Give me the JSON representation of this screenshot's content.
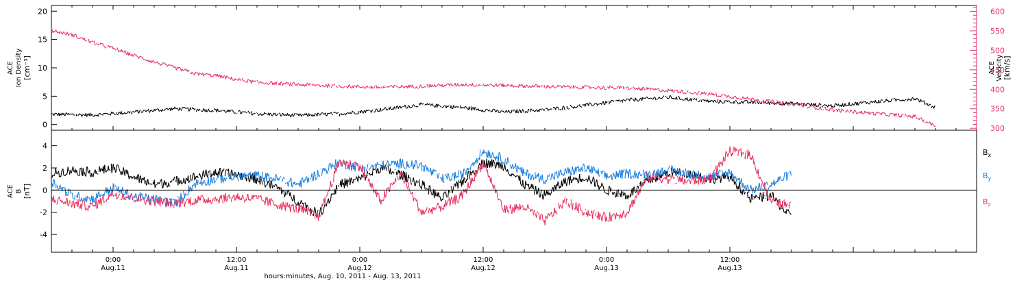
{
  "colors": {
    "black": "#000000",
    "blue": "#1a7fe0",
    "red": "#e8305f",
    "axis": "#000000",
    "background": "#ffffff"
  },
  "chart_data": [
    {
      "type": "scatter",
      "panel": "plasma",
      "ylabel_lines": [
        "ACE",
        "Ion Density",
        "[cm⁻³]"
      ],
      "ylim": [
        -1,
        21
      ],
      "yticks": [
        0,
        5,
        10,
        15,
        20
      ],
      "y2label_lines": [
        "ACE",
        "Velocity",
        "[km/s]"
      ],
      "y2lim": [
        295,
        615
      ],
      "y2ticks": [
        300,
        350,
        400,
        450,
        500,
        550,
        600
      ],
      "xlim": [
        -6,
        84
      ],
      "series": [
        {
          "key": "density",
          "axis": "left",
          "color": "#000000",
          "x": [
            -6,
            -2,
            2,
            6,
            10,
            14,
            18,
            22,
            26,
            30,
            34,
            38,
            42,
            46,
            50,
            54,
            58,
            62,
            66,
            70,
            74,
            78,
            80
          ],
          "y": [
            1.8,
            1.7,
            2.2,
            2.8,
            2.5,
            1.9,
            1.6,
            1.9,
            2.6,
            3.5,
            3.0,
            2.2,
            2.6,
            3.4,
            4.3,
            4.8,
            4.1,
            3.9,
            3.7,
            3.3,
            4.0,
            4.6,
            3.0
          ]
        },
        {
          "key": "velocity",
          "axis": "right",
          "color": "#e8305f",
          "x": [
            -6,
            -4,
            -2,
            0,
            2,
            4,
            6,
            8,
            10,
            12,
            14,
            18,
            22,
            26,
            30,
            34,
            38,
            42,
            46,
            50,
            54,
            58,
            62,
            66,
            70,
            74,
            78,
            80
          ],
          "y": [
            550,
            540,
            520,
            505,
            487,
            470,
            455,
            440,
            435,
            425,
            418,
            412,
            408,
            405,
            408,
            412,
            410,
            407,
            405,
            403,
            397,
            388,
            375,
            362,
            347,
            338,
            330,
            306
          ]
        }
      ]
    },
    {
      "type": "scatter",
      "panel": "magnetic",
      "ylabel_lines": [
        "ACE",
        "B",
        "[nT]"
      ],
      "ylim": [
        -5.6,
        5.4
      ],
      "yticks": [
        -4,
        -2,
        0,
        2,
        4
      ],
      "zero_line": true,
      "xlim": [
        -6,
        84
      ],
      "xticks": [
        {
          "x": 0,
          "time": "0:00",
          "date": "Aug.11"
        },
        {
          "x": 12,
          "time": "12:00",
          "date": "Aug.11"
        },
        {
          "x": 24,
          "time": "0:00",
          "date": "Aug.12"
        },
        {
          "x": 36,
          "time": "12:00",
          "date": "Aug.12"
        },
        {
          "x": 48,
          "time": "0:00",
          "date": "Aug.13"
        },
        {
          "x": 60,
          "time": "12:00",
          "date": "Aug.13"
        }
      ],
      "xlabel": "hours:minutes, Aug. 10, 2011 - Aug. 13, 2011",
      "series": [
        {
          "key": "bx",
          "name": "Bx",
          "sub": "x",
          "color": "#000000",
          "x": [
            -6,
            -4,
            -2,
            0,
            2,
            4,
            6,
            8,
            10,
            12,
            14,
            16,
            18,
            20,
            22,
            24,
            26,
            28,
            30,
            32,
            34,
            36,
            38,
            40,
            42,
            44,
            46,
            48,
            50,
            52,
            54,
            56,
            58,
            60,
            62,
            64,
            66
          ],
          "y": [
            1.5,
            1.8,
            1.6,
            2.0,
            1.2,
            0.5,
            0.8,
            1.2,
            1.6,
            1.4,
            1.0,
            0.2,
            -1.0,
            -2.2,
            0.5,
            1.0,
            2.0,
            1.4,
            0.5,
            -0.8,
            0.8,
            2.5,
            2.2,
            0.5,
            -0.5,
            0.8,
            1.2,
            0.0,
            -0.5,
            0.8,
            1.6,
            1.5,
            1.0,
            1.2,
            -0.8,
            -0.5,
            -2.5
          ]
        },
        {
          "key": "by",
          "name": "By",
          "sub": "y",
          "color": "#1a7fe0",
          "x": [
            -6,
            -4,
            -2,
            0,
            2,
            4,
            6,
            8,
            10,
            12,
            14,
            16,
            18,
            20,
            22,
            24,
            26,
            28,
            30,
            32,
            34,
            36,
            38,
            40,
            42,
            44,
            46,
            48,
            50,
            52,
            54,
            56,
            58,
            60,
            62,
            64,
            66
          ],
          "y": [
            0.8,
            -0.5,
            -0.8,
            0.2,
            -0.6,
            -0.8,
            -1.2,
            0.6,
            1.0,
            1.2,
            1.3,
            1.0,
            0.5,
            1.5,
            2.5,
            2.0,
            2.2,
            2.4,
            2.2,
            1.0,
            1.4,
            3.5,
            2.8,
            1.5,
            1.0,
            1.6,
            2.0,
            1.2,
            1.5,
            1.4,
            1.8,
            1.5,
            1.2,
            1.6,
            0.0,
            0.5,
            1.5
          ]
        },
        {
          "key": "bz",
          "name": "Bz",
          "sub": "z",
          "color": "#e8305f",
          "x": [
            -6,
            -4,
            -2,
            0,
            2,
            4,
            6,
            8,
            10,
            12,
            14,
            16,
            18,
            20,
            22,
            24,
            26,
            28,
            30,
            32,
            34,
            36,
            38,
            40,
            42,
            44,
            46,
            48,
            50,
            52,
            54,
            56,
            58,
            60,
            62,
            64,
            66
          ],
          "y": [
            -0.8,
            -1.2,
            -1.5,
            -0.3,
            -0.7,
            -1.0,
            -1.2,
            -0.9,
            -0.8,
            -0.6,
            -0.8,
            -1.3,
            -1.7,
            -2.4,
            2.5,
            2.2,
            -1.0,
            1.5,
            -2.0,
            -1.5,
            -0.5,
            2.5,
            -1.8,
            -1.5,
            -2.8,
            -1.0,
            -2.0,
            -2.5,
            -2.0,
            1.2,
            1.0,
            0.8,
            1.0,
            3.5,
            3.2,
            -1.0,
            -1.5
          ]
        }
      ]
    }
  ]
}
